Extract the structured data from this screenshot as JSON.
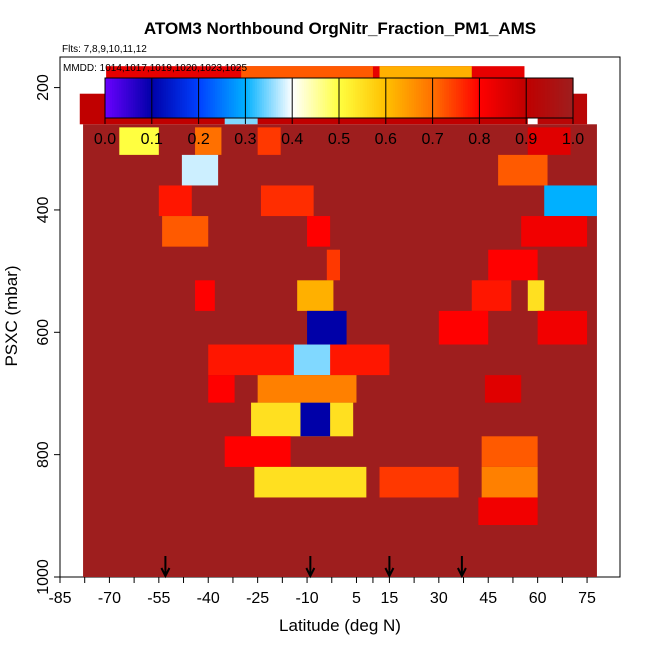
{
  "chart_data": {
    "type": "heatmap",
    "title": "ATOM3 Northbound OrgNitr_Fraction_PM1_AMS",
    "flights_note": "Flts: 7,8,9,10,11,12",
    "dates_note": "MMDD: 1014,1017,1019,1020,1023,1025",
    "xlabel": "Latitude (deg N)",
    "ylabel": "PSXC (mbar)",
    "xlim": [
      -85,
      85
    ],
    "ylim": [
      1000,
      150
    ],
    "x_ticks": [
      "-85",
      "-70",
      "-55",
      "-40",
      "-25",
      "-10",
      "5",
      "15",
      "30",
      "45",
      "60",
      "75"
    ],
    "x_tick_values": [
      -85,
      -70,
      -55,
      -40,
      -25,
      -10,
      5,
      15,
      30,
      45,
      60,
      75
    ],
    "y_ticks": [
      "200",
      "400",
      "600",
      "800",
      "1000"
    ],
    "y_tick_values": [
      200,
      400,
      600,
      800,
      1000
    ],
    "colorbar": {
      "min": 0.0,
      "max": 1.0,
      "tick_labels": [
        "0.0",
        "0.1",
        "0.2",
        "0.3",
        "0.4",
        "0.5",
        "0.6",
        "0.7",
        "0.8",
        "0.9",
        "1.0"
      ],
      "tick_values": [
        0.0,
        0.1,
        0.2,
        0.3,
        0.4,
        0.5,
        0.6,
        0.7,
        0.8,
        0.9,
        1.0
      ],
      "colors": [
        "#6a00ff",
        "#0000a8",
        "#0040ff",
        "#00b0ff",
        "#ffffff",
        "#ffff40",
        "#ffc000",
        "#ff7000",
        "#ff0000",
        "#c00000",
        "#9e1e1e"
      ]
    },
    "profile_markers_latitude": [
      -53,
      -9,
      15,
      37
    ],
    "background_value": 1.0,
    "background_extent": {
      "lat_min": -78,
      "lat_max": 78,
      "p_min": 260,
      "p_max": 1000
    },
    "bands": [
      {
        "p_min": 165,
        "p_max": 205,
        "segments": [
          {
            "lat0": -71,
            "lat1": 56,
            "value": 0.84
          },
          {
            "lat0": -30,
            "lat1": 10,
            "value": 0.72
          },
          {
            "lat0": 12,
            "lat1": 40,
            "value": 0.62
          }
        ]
      },
      {
        "p_min": 210,
        "p_max": 260,
        "segments": [
          {
            "lat0": -79,
            "lat1": 57,
            "value": 0.9
          },
          {
            "lat0": -35,
            "lat1": -25,
            "value": 0.35
          },
          {
            "lat0": 60,
            "lat1": 75,
            "value": 0.92
          }
        ]
      },
      {
        "p_min": 265,
        "p_max": 310,
        "segments": [
          {
            "lat0": -67,
            "lat1": -55,
            "value": 0.5
          },
          {
            "lat0": -44,
            "lat1": -36,
            "value": 0.7
          },
          {
            "lat0": -25,
            "lat1": -18,
            "value": 0.75
          },
          {
            "lat0": 57,
            "lat1": 70,
            "value": 0.85
          }
        ]
      },
      {
        "p_min": 310,
        "p_max": 360,
        "segments": [
          {
            "lat0": -48,
            "lat1": -37,
            "value": 0.38
          },
          {
            "lat0": 48,
            "lat1": 63,
            "value": 0.72
          }
        ]
      },
      {
        "p_min": 360,
        "p_max": 410,
        "segments": [
          {
            "lat0": -55,
            "lat1": -45,
            "value": 0.78
          },
          {
            "lat0": -24,
            "lat1": -8,
            "value": 0.76
          },
          {
            "lat0": 62,
            "lat1": 78,
            "value": 0.3
          }
        ]
      },
      {
        "p_min": 410,
        "p_max": 460,
        "segments": [
          {
            "lat0": -54,
            "lat1": -40,
            "value": 0.72
          },
          {
            "lat0": -10,
            "lat1": -3,
            "value": 0.8
          },
          {
            "lat0": 55,
            "lat1": 75,
            "value": 0.82
          }
        ]
      },
      {
        "p_min": 465,
        "p_max": 515,
        "segments": [
          {
            "lat0": -4,
            "lat1": 0,
            "value": 0.75
          },
          {
            "lat0": 45,
            "lat1": 60,
            "value": 0.8
          }
        ]
      },
      {
        "p_min": 515,
        "p_max": 565,
        "segments": [
          {
            "lat0": -44,
            "lat1": -38,
            "value": 0.8
          },
          {
            "lat0": -13,
            "lat1": -2,
            "value": 0.62
          },
          {
            "lat0": 40,
            "lat1": 52,
            "value": 0.78
          },
          {
            "lat0": 57,
            "lat1": 62,
            "value": 0.55
          }
        ]
      },
      {
        "p_min": 565,
        "p_max": 620,
        "segments": [
          {
            "lat0": -10,
            "lat1": 2,
            "value": 0.1
          },
          {
            "lat0": 30,
            "lat1": 45,
            "value": 0.8
          },
          {
            "lat0": 60,
            "lat1": 75,
            "value": 0.82
          }
        ]
      },
      {
        "p_min": 620,
        "p_max": 670,
        "segments": [
          {
            "lat0": -40,
            "lat1": 15,
            "value": 0.78
          },
          {
            "lat0": -14,
            "lat1": -3,
            "value": 0.35
          }
        ]
      },
      {
        "p_min": 670,
        "p_max": 715,
        "segments": [
          {
            "lat0": -40,
            "lat1": -32,
            "value": 0.8
          },
          {
            "lat0": -25,
            "lat1": 5,
            "value": 0.68
          },
          {
            "lat0": 44,
            "lat1": 55,
            "value": 0.85
          }
        ]
      },
      {
        "p_min": 715,
        "p_max": 770,
        "segments": [
          {
            "lat0": -27,
            "lat1": 4,
            "value": 0.55
          },
          {
            "lat0": -12,
            "lat1": -3,
            "value": 0.1
          }
        ]
      },
      {
        "p_min": 770,
        "p_max": 820,
        "segments": [
          {
            "lat0": -35,
            "lat1": -15,
            "value": 0.8
          },
          {
            "lat0": 43,
            "lat1": 60,
            "value": 0.72
          }
        ]
      },
      {
        "p_min": 820,
        "p_max": 870,
        "segments": [
          {
            "lat0": -26,
            "lat1": 8,
            "value": 0.55
          },
          {
            "lat0": 12,
            "lat1": 36,
            "value": 0.75
          },
          {
            "lat0": 43,
            "lat1": 60,
            "value": 0.68
          }
        ]
      },
      {
        "p_min": 870,
        "p_max": 915,
        "segments": [
          {
            "lat0": 42,
            "lat1": 60,
            "value": 0.82
          }
        ]
      }
    ]
  }
}
